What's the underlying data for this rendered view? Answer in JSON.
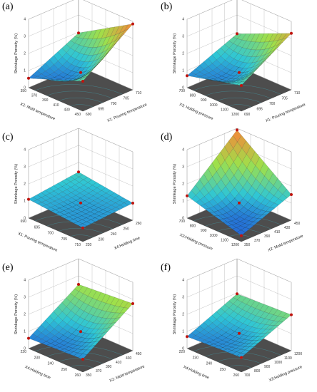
{
  "colors": {
    "surface_low": "#1f3bd6",
    "surface_mid": "#2ec6d6",
    "surface_high": "#9fe04a",
    "peak": "#f28a3a",
    "floor": "#4d4d4d",
    "grid": "#9a9a9a",
    "design_point": "#c0140e"
  },
  "chart_data": [
    {
      "type": "surface3d",
      "panel_label": "(a)",
      "title": "",
      "xlabel": "X2: Mold temperature",
      "ylabel": "X1: Pouring temperature",
      "zlabel": "Shrinkage Porosity (%)",
      "xrange": [
        350,
        450
      ],
      "yrange": [
        690,
        710
      ],
      "zrange": [
        0,
        4
      ],
      "xticks": [
        "350",
        "370",
        "390",
        "410",
        "430",
        "450"
      ],
      "yticks": [
        "690",
        "695",
        "700",
        "705",
        "710"
      ],
      "zticks": [
        "0",
        "1",
        "2",
        "3",
        "4"
      ],
      "corners": {
        "x0y0": 0.55,
        "x1y0": 1.75,
        "x0y1": 1.95,
        "x1y1": 3.85
      },
      "center": 0.95
    },
    {
      "type": "surface3d",
      "panel_label": "(b)",
      "title": "",
      "xlabel": "X3: Holding pressure",
      "ylabel": "X1: Pouring temperature",
      "zlabel": "Shrinkage Porosity (%)",
      "xrange": [
        700,
        1200
      ],
      "yrange": [
        690,
        710
      ],
      "zrange": [
        0,
        4
      ],
      "xticks": [
        "700",
        "800",
        "900",
        "1000",
        "1100",
        "1200"
      ],
      "yticks": [
        "690",
        "695",
        "700",
        "705",
        "710"
      ],
      "zticks": [
        "0",
        "1",
        "2",
        "3",
        "4"
      ],
      "corners": {
        "x0y0": 0.7,
        "x1y0": 1.5,
        "x0y1": 1.9,
        "x1y1": 3.3
      },
      "center": 0.95
    },
    {
      "type": "surface3d",
      "panel_label": "(c)",
      "title": "",
      "xlabel": "X1: Pouring temperature",
      "ylabel": "X4:Holding time",
      "zlabel": "Shrinkage Porosity (%)",
      "xrange": [
        690,
        710
      ],
      "yrange": [
        220,
        260
      ],
      "zrange": [
        0,
        4
      ],
      "xticks": [
        "690",
        "695",
        "700",
        "705",
        "710"
      ],
      "yticks": [
        "220",
        "230",
        "240",
        "250",
        "260"
      ],
      "zticks": [
        "0",
        "1",
        "2",
        "3",
        "4"
      ],
      "corners": {
        "x0y0": 1.1,
        "x1y0": 0.8,
        "x0y1": 1.45,
        "x1y1": 1.0
      },
      "center": 0.95
    },
    {
      "type": "surface3d",
      "panel_label": "(d)",
      "title": "",
      "xlabel": "X3:Holding pressure",
      "ylabel": "X2: Mold temperature",
      "zlabel": "Shrinkage Porosity (%)",
      "xrange": [
        700,
        1200
      ],
      "yrange": [
        350,
        450
      ],
      "zrange": [
        0,
        4
      ],
      "xticks": [
        "700",
        "800",
        "900",
        "1000",
        "1100",
        "1200"
      ],
      "yticks": [
        "350",
        "370",
        "390",
        "410",
        "430",
        "450"
      ],
      "zticks": [
        "0",
        "1",
        "2",
        "3",
        "4"
      ],
      "corners": {
        "x0y0": 1.3,
        "x1y0": 0.35,
        "x0y1": 3.9,
        "x1y1": 1.5
      },
      "center": 0.95
    },
    {
      "type": "surface3d",
      "panel_label": "(e)",
      "title": "",
      "xlabel": "X4:Holding time",
      "ylabel": "X2: Mold temperature",
      "zlabel": "Shrinkage Porosity (%)",
      "xrange": [
        220,
        260
      ],
      "yrange": [
        350,
        450
      ],
      "zrange": [
        0,
        4
      ],
      "xticks": [
        "220",
        "230",
        "240",
        "250",
        "260"
      ],
      "yticks": [
        "350",
        "370",
        "390",
        "410",
        "430",
        "450"
      ],
      "zticks": [
        "0",
        "1",
        "2",
        "3",
        "4"
      ],
      "corners": {
        "x0y0": 0.6,
        "x1y0": 0.75,
        "x0y1": 2.5,
        "x1y1": 2.75
      },
      "center": 1.05
    },
    {
      "type": "surface3d",
      "panel_label": "(f)",
      "title": "",
      "xlabel": "X4:Holding time",
      "ylabel": "X3:Holding pressure",
      "zlabel": "Shrinkage Porosity (%)",
      "xrange": [
        220,
        260
      ],
      "yrange": [
        700,
        1200
      ],
      "zrange": [
        0,
        4
      ],
      "xticks": [
        "220",
        "230",
        "240",
        "250",
        "260"
      ],
      "yticks": [
        "700",
        "800",
        "900",
        "1000",
        "1100",
        "1200"
      ],
      "zticks": [
        "0",
        "1",
        "2",
        "3",
        "4"
      ],
      "corners": {
        "x0y0": 0.7,
        "x1y0": 0.85,
        "x0y1": 1.95,
        "x1y1": 2.1
      },
      "center": 0.95
    }
  ]
}
